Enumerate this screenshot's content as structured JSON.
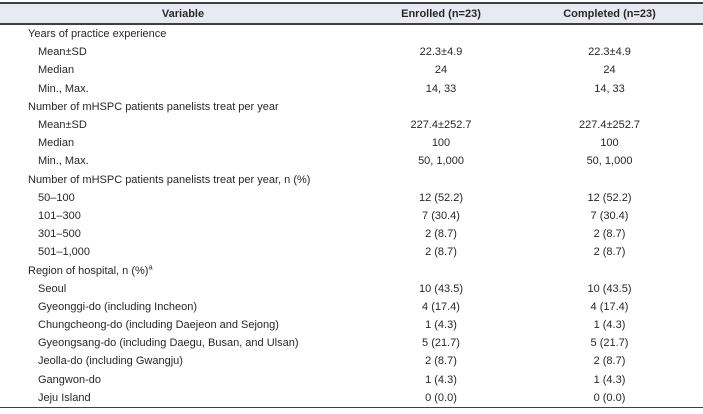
{
  "colors": {
    "header_bg": "#e8eaf3",
    "border": "#3f3f3f",
    "text": "#2a2627"
  },
  "table": {
    "columns": [
      {
        "label": "Variable"
      },
      {
        "label": "Enrolled (n=23)"
      },
      {
        "label": "Completed (n=23)"
      }
    ],
    "rows": [
      {
        "type": "section",
        "label": "Years of practice experience",
        "enrolled": "",
        "completed": ""
      },
      {
        "type": "item",
        "label": "Mean±SD",
        "enrolled": "22.3±4.9",
        "completed": "22.3±4.9"
      },
      {
        "type": "item",
        "label": "Median",
        "enrolled": "24",
        "completed": "24"
      },
      {
        "type": "item",
        "label": "Min., Max.",
        "enrolled": "14, 33",
        "completed": "14, 33"
      },
      {
        "type": "section",
        "label": "Number of mHSPC patients panelists treat per year",
        "enrolled": "",
        "completed": ""
      },
      {
        "type": "item",
        "label": "Mean±SD",
        "enrolled": "227.4±252.7",
        "completed": "227.4±252.7"
      },
      {
        "type": "item",
        "label": "Median",
        "enrolled": "100",
        "completed": "100"
      },
      {
        "type": "item",
        "label": "Min., Max.",
        "enrolled": "50, 1,000",
        "completed": "50, 1,000"
      },
      {
        "type": "section",
        "label": "Number of mHSPC patients panelists treat per year, n (%)",
        "enrolled": "",
        "completed": ""
      },
      {
        "type": "item",
        "label": "50–100",
        "enrolled": "12 (52.2)",
        "completed": "12 (52.2)"
      },
      {
        "type": "item",
        "label": "101–300",
        "enrolled": "7 (30.4)",
        "completed": "7 (30.4)"
      },
      {
        "type": "item",
        "label": "301–500",
        "enrolled": "2 (8.7)",
        "completed": "2 (8.7)"
      },
      {
        "type": "item",
        "label": "501–1,000",
        "enrolled": "2 (8.7)",
        "completed": "2 (8.7)"
      },
      {
        "type": "section",
        "label": "Region of hospital, n (%)",
        "sup": "a",
        "enrolled": "",
        "completed": ""
      },
      {
        "type": "item",
        "label": "Seoul",
        "enrolled": "10 (43.5)",
        "completed": "10 (43.5)"
      },
      {
        "type": "item",
        "label": "Gyeonggi-do (including Incheon)",
        "enrolled": "4 (17.4)",
        "completed": "4 (17.4)"
      },
      {
        "type": "item",
        "label": "Chungcheong-do (including Daejeon and Sejong)",
        "enrolled": "1 (4.3)",
        "completed": "1 (4.3)"
      },
      {
        "type": "item",
        "label": "Gyeongsang-do (including Daegu, Busan, and Ulsan)",
        "enrolled": "5 (21.7)",
        "completed": "5 (21.7)"
      },
      {
        "type": "item",
        "label": "Jeolla-do (including Gwangju)",
        "enrolled": "2 (8.7)",
        "completed": "2 (8.7)"
      },
      {
        "type": "item",
        "label": "Gangwon-do",
        "enrolled": "1 (4.3)",
        "completed": "1 (4.3)"
      },
      {
        "type": "item",
        "label": "Jeju Island",
        "enrolled": "0 (0.0)",
        "completed": "0 (0.0)"
      }
    ]
  }
}
